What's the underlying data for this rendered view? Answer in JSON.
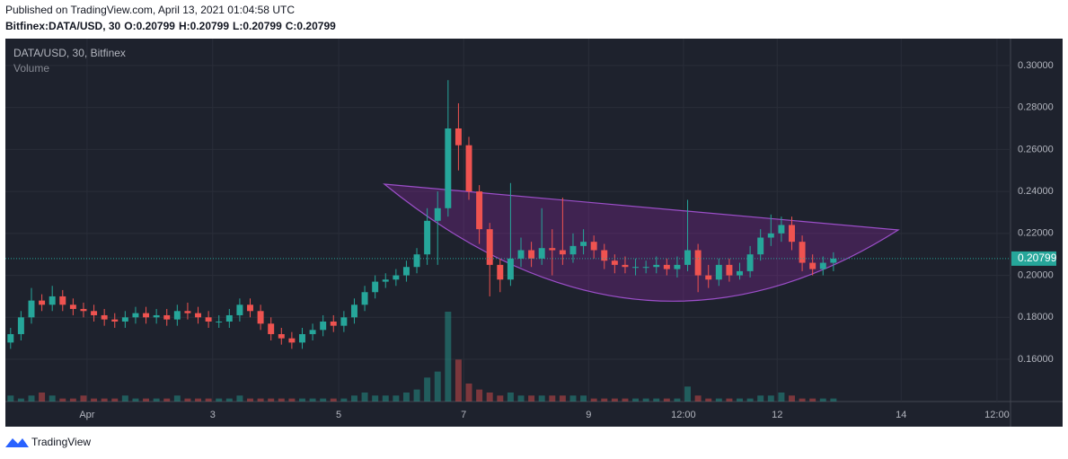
{
  "header": {
    "published": "Published on TradingView.com, April 13, 2021 01:04:58 UTC",
    "symbol": "Bitfinex:DATA/USD, 30",
    "ohlc": [
      {
        "label": "O:",
        "value": 0.20799
      },
      {
        "label": "H:",
        "value": 0.20799
      },
      {
        "label": "L:",
        "value": 0.20799
      },
      {
        "label": "C:",
        "value": 0.20799
      }
    ]
  },
  "chart_data": {
    "type": "candlestick",
    "title": "DATA/USD, 30, Bitfinex",
    "volume_label": "Volume",
    "up_color": "#26a69a",
    "down_color": "#ef5350",
    "grid": true,
    "xlim": [
      0,
      96.5
    ],
    "xticks": [
      {
        "value": 7.84,
        "label": "Apr"
      },
      {
        "value": 19.9,
        "label": "3"
      },
      {
        "value": 32.0,
        "label": "5"
      },
      {
        "value": 44.0,
        "label": "7"
      },
      {
        "value": 56.0,
        "label": "9"
      },
      {
        "value": 65.1,
        "label": "12:00"
      },
      {
        "value": 74.1,
        "label": "12"
      },
      {
        "value": 86.0,
        "label": "14"
      },
      {
        "value": 95.2,
        "label": "12:00"
      }
    ],
    "ylim": [
      0.1399,
      0.3128
    ],
    "yticks": [
      {
        "value": 0.16,
        "label": "0.16000"
      },
      {
        "value": 0.18,
        "label": "0.18000"
      },
      {
        "value": 0.2,
        "label": "0.20000"
      },
      {
        "value": 0.22,
        "label": "0.22000"
      },
      {
        "value": 0.24,
        "label": "0.24000"
      },
      {
        "value": 0.26,
        "label": "0.26000"
      },
      {
        "value": 0.28,
        "label": "0.28000"
      },
      {
        "value": 0.3,
        "label": "0.30000"
      }
    ],
    "last_price": 0.20799,
    "x": [
      0.5,
      1.5,
      2.5,
      3.5,
      4.5,
      5.5,
      6.5,
      7.5,
      8.5,
      9.5,
      10.5,
      11.5,
      12.5,
      13.5,
      14.5,
      15.5,
      16.5,
      17.5,
      18.5,
      19.5,
      20.5,
      21.5,
      22.5,
      23.5,
      24.5,
      25.5,
      26.5,
      27.5,
      28.5,
      29.5,
      30.5,
      31.5,
      32.5,
      33.5,
      34.5,
      35.5,
      36.5,
      37.5,
      38.5,
      39.5,
      40.5,
      41.5,
      42.5,
      43.5,
      44.5,
      45.5,
      46.5,
      47.5,
      48.5,
      49.5,
      50.5,
      51.5,
      52.5,
      53.5,
      54.5,
      55.5,
      56.5,
      57.5,
      58.5,
      59.5,
      60.5,
      61.5,
      62.5,
      63.5,
      64.5,
      65.5,
      66.5,
      67.5,
      68.5,
      69.5,
      70.5,
      71.5,
      72.5,
      73.5,
      74.5,
      75.5,
      76.5,
      77.5,
      78.5,
      79.5
    ],
    "open": [
      0.168,
      0.172,
      0.18,
      0.188,
      0.186,
      0.19,
      0.186,
      0.184,
      0.183,
      0.181,
      0.179,
      0.178,
      0.18,
      0.182,
      0.18,
      0.181,
      0.179,
      0.183,
      0.182,
      0.18,
      0.178,
      0.178,
      0.181,
      0.186,
      0.183,
      0.177,
      0.172,
      0.17,
      0.168,
      0.172,
      0.174,
      0.178,
      0.176,
      0.18,
      0.186,
      0.192,
      0.197,
      0.198,
      0.2,
      0.204,
      0.21,
      0.226,
      0.232,
      0.27,
      0.262,
      0.24,
      0.222,
      0.205,
      0.198,
      0.208,
      0.212,
      0.208,
      0.213,
      0.212,
      0.21,
      0.214,
      0.216,
      0.212,
      0.207,
      0.205,
      0.204,
      0.204,
      0.204,
      0.205,
      0.203,
      0.205,
      0.212,
      0.2,
      0.198,
      0.205,
      0.2,
      0.202,
      0.21,
      0.218,
      0.22,
      0.224,
      0.216,
      0.206,
      0.203,
      0.206
    ],
    "high": [
      0.175,
      0.183,
      0.194,
      0.191,
      0.195,
      0.193,
      0.189,
      0.187,
      0.186,
      0.184,
      0.182,
      0.183,
      0.185,
      0.185,
      0.184,
      0.184,
      0.186,
      0.187,
      0.185,
      0.183,
      0.181,
      0.184,
      0.189,
      0.189,
      0.186,
      0.18,
      0.175,
      0.173,
      0.175,
      0.177,
      0.181,
      0.181,
      0.183,
      0.189,
      0.195,
      0.2,
      0.201,
      0.203,
      0.207,
      0.213,
      0.232,
      0.24,
      0.293,
      0.282,
      0.266,
      0.243,
      0.225,
      0.208,
      0.244,
      0.218,
      0.216,
      0.232,
      0.222,
      0.237,
      0.22,
      0.222,
      0.219,
      0.215,
      0.21,
      0.209,
      0.208,
      0.207,
      0.209,
      0.208,
      0.209,
      0.236,
      0.215,
      0.205,
      0.208,
      0.208,
      0.206,
      0.214,
      0.222,
      0.229,
      0.228,
      0.228,
      0.219,
      0.21,
      0.209,
      0.211
    ],
    "low": [
      0.165,
      0.169,
      0.177,
      0.183,
      0.183,
      0.183,
      0.181,
      0.18,
      0.178,
      0.176,
      0.175,
      0.175,
      0.177,
      0.177,
      0.177,
      0.176,
      0.176,
      0.179,
      0.177,
      0.175,
      0.175,
      0.175,
      0.178,
      0.18,
      0.174,
      0.169,
      0.167,
      0.165,
      0.165,
      0.169,
      0.171,
      0.173,
      0.173,
      0.177,
      0.183,
      0.189,
      0.194,
      0.195,
      0.197,
      0.201,
      0.205,
      0.205,
      0.228,
      0.25,
      0.236,
      0.215,
      0.19,
      0.192,
      0.195,
      0.204,
      0.204,
      0.205,
      0.2,
      0.205,
      0.206,
      0.21,
      0.208,
      0.203,
      0.201,
      0.201,
      0.2,
      0.201,
      0.201,
      0.2,
      0.199,
      0.202,
      0.192,
      0.194,
      0.195,
      0.197,
      0.198,
      0.199,
      0.207,
      0.214,
      0.216,
      0.212,
      0.202,
      0.2,
      0.2,
      0.202
    ],
    "close": [
      0.172,
      0.18,
      0.188,
      0.186,
      0.19,
      0.186,
      0.184,
      0.183,
      0.181,
      0.179,
      0.178,
      0.18,
      0.182,
      0.18,
      0.181,
      0.179,
      0.183,
      0.182,
      0.18,
      0.178,
      0.178,
      0.181,
      0.186,
      0.183,
      0.177,
      0.172,
      0.17,
      0.168,
      0.172,
      0.174,
      0.178,
      0.176,
      0.18,
      0.186,
      0.192,
      0.197,
      0.198,
      0.2,
      0.204,
      0.21,
      0.226,
      0.232,
      0.27,
      0.262,
      0.24,
      0.222,
      0.205,
      0.198,
      0.208,
      0.212,
      0.208,
      0.213,
      0.212,
      0.21,
      0.214,
      0.216,
      0.212,
      0.207,
      0.205,
      0.204,
      0.204,
      0.204,
      0.205,
      0.203,
      0.205,
      0.212,
      0.2,
      0.198,
      0.205,
      0.2,
      0.202,
      0.21,
      0.218,
      0.22,
      0.224,
      0.216,
      0.206,
      0.203,
      0.206,
      0.208
    ],
    "volume": [
      2,
      1,
      2,
      3,
      2,
      1,
      1,
      2,
      1,
      1,
      1,
      2,
      1,
      1,
      1,
      1,
      2,
      1,
      1,
      1,
      1,
      1,
      2,
      1,
      1,
      1,
      1,
      1,
      1,
      1,
      1,
      1,
      1,
      2,
      3,
      2,
      2,
      2,
      3,
      4,
      8,
      10,
      30,
      14,
      6,
      4,
      3,
      2,
      3,
      2,
      2,
      2,
      2,
      2,
      2,
      2,
      1,
      1,
      1,
      1,
      1,
      1,
      1,
      1,
      1,
      5,
      2,
      1,
      1,
      1,
      1,
      1,
      2,
      2,
      3,
      2,
      1,
      1,
      1,
      1
    ]
  },
  "footer": {
    "brand": "TradingView"
  }
}
